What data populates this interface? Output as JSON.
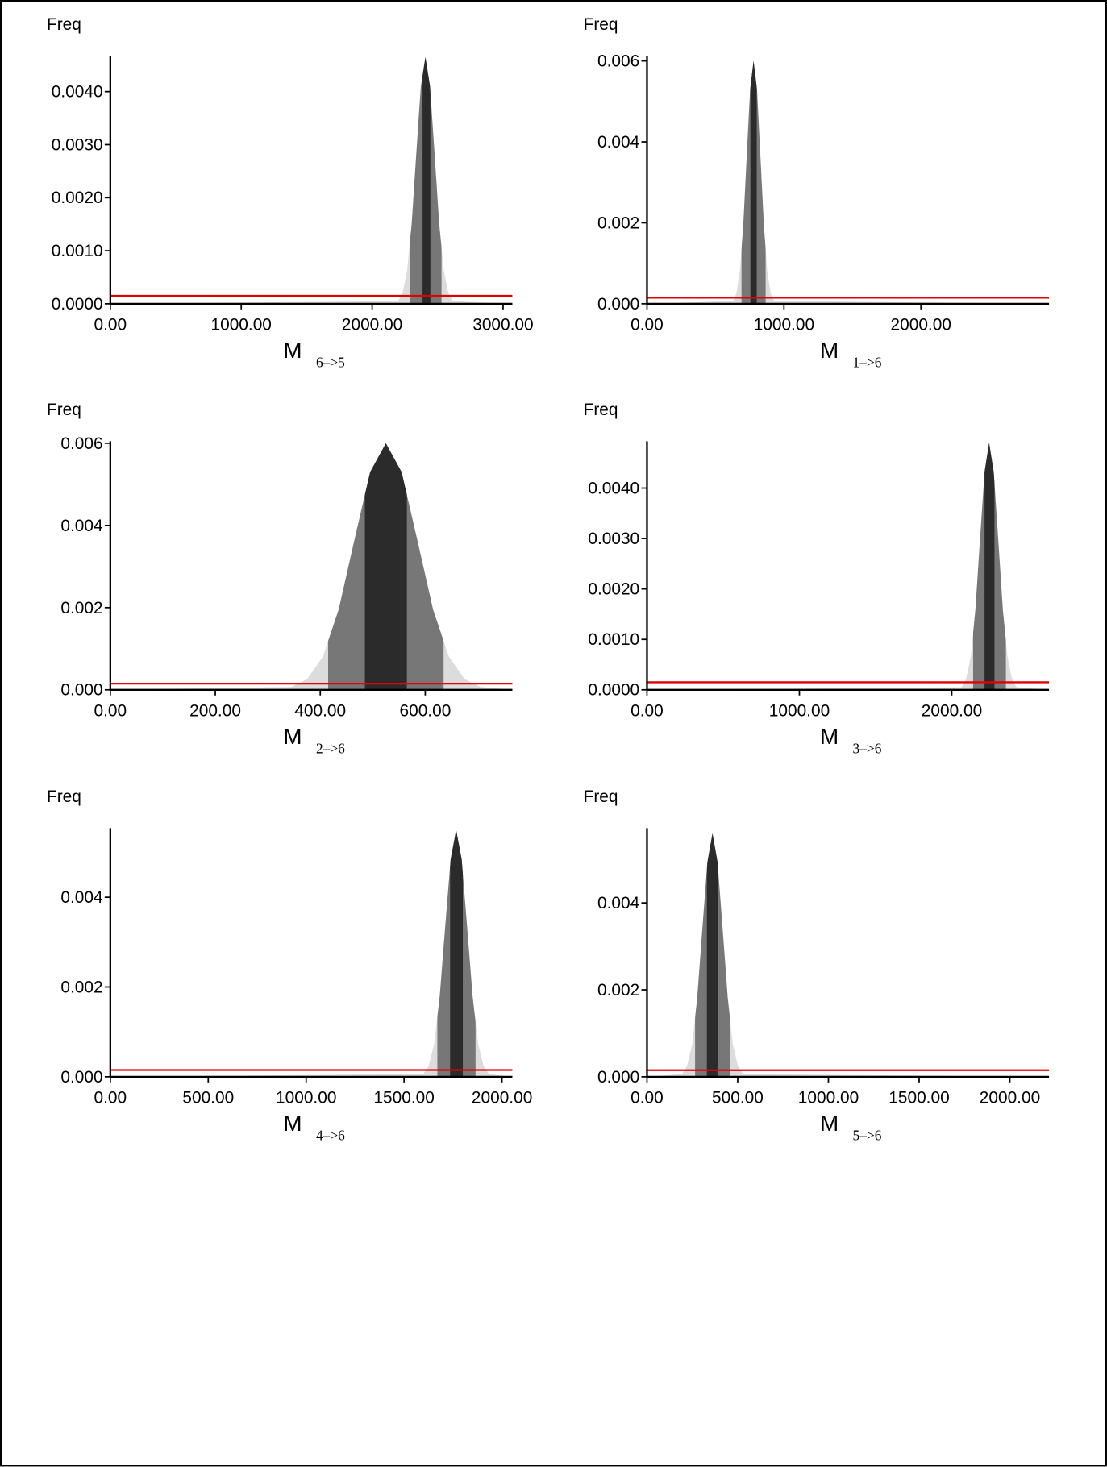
{
  "chart_data": [
    {
      "type": "area",
      "ylabel": "Freq",
      "xlabel": "M",
      "xlabel_sub": "6–>5",
      "xlim": [
        0,
        3071
      ],
      "ylim": [
        0,
        0.00467
      ],
      "xticks": [
        {
          "value": 0,
          "label": "0.00"
        },
        {
          "value": 1000,
          "label": "1000.00"
        },
        {
          "value": 2000,
          "label": "2000.00"
        },
        {
          "value": 3000,
          "label": "3000.00"
        }
      ],
      "yticks": [
        {
          "value": 0,
          "label": "0.0000"
        },
        {
          "value": 0.001,
          "label": "0.0010"
        },
        {
          "value": 0.002,
          "label": "0.0020"
        },
        {
          "value": 0.003,
          "label": "0.0030"
        },
        {
          "value": 0.004,
          "label": "0.0040"
        }
      ],
      "x": [
        0,
        2197,
        2232,
        2267,
        2302,
        2337,
        2372,
        2407,
        2442,
        2477,
        2512,
        2547,
        2582,
        2617,
        3071
      ],
      "values": [
        0,
        5e-05,
        0.0002,
        0.00063,
        0.00151,
        0.00282,
        0.0041,
        0.00465,
        0.0041,
        0.00282,
        0.00151,
        0.00063,
        0.0002,
        5e-05,
        0
      ],
      "color": "#dcdcdc",
      "bands": [
        {
          "range": [
            2290,
            2530
          ],
          "color": "#777777"
        },
        {
          "range": [
            2385,
            2445
          ],
          "color": "#2b2b2b"
        }
      ],
      "reference_line": {
        "value": 0.00015,
        "color": "#e00000"
      }
    },
    {
      "type": "area",
      "ylabel": "Freq",
      "xlabel": "M",
      "xlabel_sub": "1–>6",
      "xlim": [
        0,
        2935
      ],
      "ylim": [
        0,
        0.00612
      ],
      "xticks": [
        {
          "value": 0,
          "label": "0.00"
        },
        {
          "value": 1000,
          "label": "1000.00"
        },
        {
          "value": 2000,
          "label": "2000.00"
        }
      ],
      "yticks": [
        {
          "value": 0,
          "label": "0.000"
        },
        {
          "value": 0.002,
          "label": "0.002"
        },
        {
          "value": 0.004,
          "label": "0.004"
        },
        {
          "value": 0.006,
          "label": "0.006"
        }
      ],
      "x": [
        0,
        628,
        653,
        678,
        703,
        728,
        753,
        778,
        803,
        828,
        853,
        878,
        903,
        928,
        2935
      ],
      "values": [
        0,
        7e-05,
        0.00026,
        0.00081,
        0.00195,
        0.00364,
        0.0053,
        0.006,
        0.0053,
        0.00364,
        0.00195,
        0.00081,
        0.00026,
        7e-05,
        0
      ],
      "color": "#dcdcdc",
      "bands": [
        {
          "range": [
            690,
            866
          ],
          "color": "#777777"
        },
        {
          "range": [
            755,
            801
          ],
          "color": "#2b2b2b"
        }
      ],
      "reference_line": {
        "value": 0.00015,
        "color": "#e00000"
      }
    },
    {
      "type": "area",
      "ylabel": "Freq",
      "xlabel": "M",
      "xlabel_sub": "2–>6",
      "xlim": [
        0,
        766
      ],
      "ylim": [
        0,
        0.00605
      ],
      "xticks": [
        {
          "value": 0,
          "label": "0.00"
        },
        {
          "value": 200,
          "label": "200.00"
        },
        {
          "value": 400,
          "label": "400.00"
        },
        {
          "value": 600,
          "label": "600.00"
        }
      ],
      "yticks": [
        {
          "value": 0,
          "label": "0.000"
        },
        {
          "value": 0.002,
          "label": "0.002"
        },
        {
          "value": 0.004,
          "label": "0.004"
        },
        {
          "value": 0.006,
          "label": "0.006"
        }
      ],
      "x": [
        0,
        345,
        375,
        405,
        435,
        465,
        495,
        525,
        555,
        585,
        615,
        645,
        675,
        705,
        766
      ],
      "values": [
        0,
        7e-05,
        0.00026,
        0.00081,
        0.00195,
        0.00364,
        0.0053,
        0.006,
        0.0053,
        0.00364,
        0.00195,
        0.00081,
        0.00026,
        7e-05,
        0
      ],
      "color": "#dcdcdc",
      "bands": [
        {
          "range": [
            415,
            635
          ],
          "color": "#777777"
        },
        {
          "range": [
            485,
            565
          ],
          "color": "#2b2b2b"
        }
      ],
      "reference_line": {
        "value": 0.00015,
        "color": "#e00000"
      }
    },
    {
      "type": "area",
      "ylabel": "Freq",
      "xlabel": "M",
      "xlabel_sub": "3–>6",
      "xlim": [
        0,
        2638
      ],
      "ylim": [
        0,
        0.00493
      ],
      "xticks": [
        {
          "value": 0,
          "label": "0.00"
        },
        {
          "value": 1000,
          "label": "1000.00"
        },
        {
          "value": 2000,
          "label": "2000.00"
        }
      ],
      "yticks": [
        {
          "value": 0,
          "label": "0.0000"
        },
        {
          "value": 0.001,
          "label": "0.0010"
        },
        {
          "value": 0.002,
          "label": "0.0020"
        },
        {
          "value": 0.003,
          "label": "0.0030"
        },
        {
          "value": 0.004,
          "label": "0.0040"
        }
      ],
      "x": [
        0,
        2065,
        2095,
        2125,
        2155,
        2185,
        2215,
        2245,
        2275,
        2305,
        2335,
        2365,
        2395,
        2425,
        2638
      ],
      "values": [
        0,
        5e-05,
        0.00022,
        0.00067,
        0.00159,
        0.00297,
        0.00432,
        0.0049,
        0.00432,
        0.00297,
        0.00159,
        0.00067,
        0.00022,
        5e-05,
        0
      ],
      "color": "#dcdcdc",
      "bands": [
        {
          "range": [
            2140,
            2355
          ],
          "color": "#777777"
        },
        {
          "range": [
            2215,
            2280
          ],
          "color": "#2b2b2b"
        }
      ],
      "reference_line": {
        "value": 0.00015,
        "color": "#e00000"
      }
    },
    {
      "type": "area",
      "ylabel": "Freq",
      "xlabel": "M",
      "xlabel_sub": "4–>6",
      "xlim": [
        0,
        2053
      ],
      "ylim": [
        0,
        0.00554
      ],
      "xticks": [
        {
          "value": 0,
          "label": "0.00"
        },
        {
          "value": 500,
          "label": "500.00"
        },
        {
          "value": 1000,
          "label": "1000.00"
        },
        {
          "value": 1500,
          "label": "1500.00"
        },
        {
          "value": 2000,
          "label": "2000.00"
        }
      ],
      "yticks": [
        {
          "value": 0,
          "label": "0.000"
        },
        {
          "value": 0.002,
          "label": "0.002"
        },
        {
          "value": 0.004,
          "label": "0.004"
        }
      ],
      "x": [
        0,
        1598,
        1626,
        1654,
        1682,
        1710,
        1738,
        1766,
        1794,
        1822,
        1850,
        1878,
        1906,
        1934,
        2053
      ],
      "values": [
        0,
        6e-05,
        0.00024,
        0.00074,
        0.00179,
        0.00334,
        0.00485,
        0.0055,
        0.00485,
        0.00334,
        0.00179,
        0.00074,
        0.00024,
        6e-05,
        0
      ],
      "color": "#dcdcdc",
      "bands": [
        {
          "range": [
            1670,
            1865
          ],
          "color": "#777777"
        },
        {
          "range": [
            1735,
            1800
          ],
          "color": "#2b2b2b"
        }
      ],
      "reference_line": {
        "value": 0.00015,
        "color": "#e00000"
      }
    },
    {
      "type": "area",
      "ylabel": "Freq",
      "xlabel": "M",
      "xlabel_sub": "5–>6",
      "xlim": [
        0,
        2216
      ],
      "ylim": [
        0,
        0.00572
      ],
      "xticks": [
        {
          "value": 0,
          "label": "0.00"
        },
        {
          "value": 500,
          "label": "500.00"
        },
        {
          "value": 1000,
          "label": "1000.00"
        },
        {
          "value": 1500,
          "label": "1500.00"
        },
        {
          "value": 2000,
          "label": "2000.00"
        }
      ],
      "yticks": [
        {
          "value": 0,
          "label": "0.000"
        },
        {
          "value": 0.002,
          "label": "0.002"
        },
        {
          "value": 0.004,
          "label": "0.004"
        }
      ],
      "x": [
        0,
        193,
        221,
        249,
        277,
        305,
        333,
        361,
        389,
        417,
        445,
        473,
        501,
        529,
        2216
      ],
      "values": [
        0,
        6e-05,
        0.00025,
        0.00075,
        0.00182,
        0.0034,
        0.00494,
        0.0056,
        0.00494,
        0.0034,
        0.00182,
        0.00075,
        0.00025,
        6e-05,
        0
      ],
      "color": "#dcdcdc",
      "bands": [
        {
          "range": [
            265,
            460
          ],
          "color": "#777777"
        },
        {
          "range": [
            330,
            392
          ],
          "color": "#2b2b2b"
        }
      ],
      "reference_line": {
        "value": 0.00015,
        "color": "#e00000"
      }
    }
  ]
}
